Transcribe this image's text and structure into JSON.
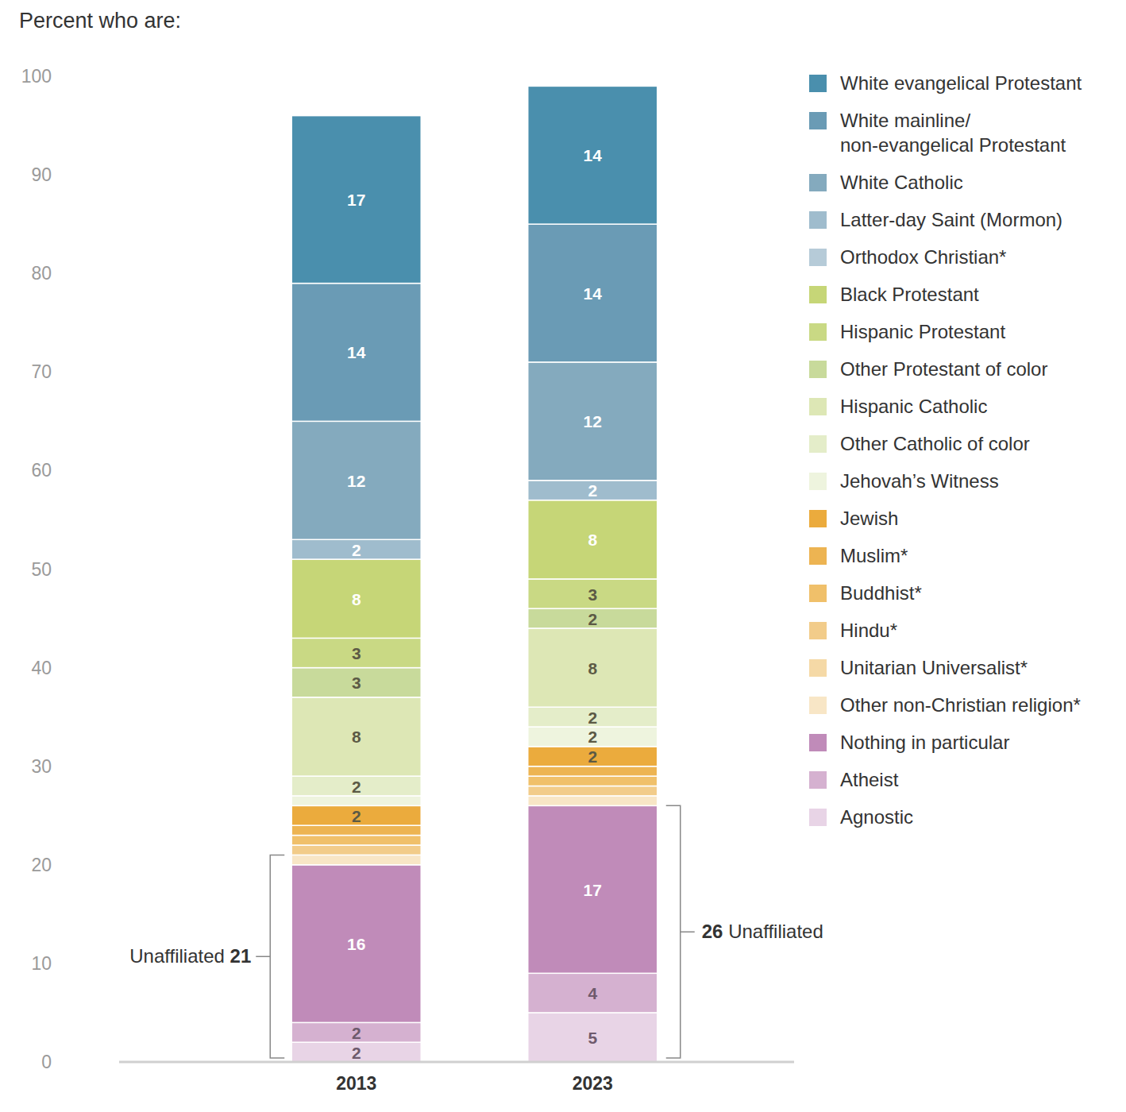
{
  "chart_data": {
    "type": "bar",
    "title": "Percent who are:",
    "stacked": true,
    "data_labels": true,
    "grid": false,
    "legend": "right",
    "categories": [
      "2013",
      "2023"
    ],
    "ylim": [
      0,
      100
    ],
    "yticks": [
      0,
      10,
      20,
      30,
      40,
      50,
      60,
      70,
      80,
      90,
      100
    ],
    "series": [
      {
        "name": "White evangelical Protestant",
        "color": "#4a8fad",
        "values": [
          17,
          14
        ],
        "value_labels": [
          "17",
          "14"
        ]
      },
      {
        "name": "White mainline/ non-evangelical Protestant",
        "color": "#6a9bb5",
        "values": [
          14,
          14
        ],
        "value_labels": [
          "14",
          "14"
        ]
      },
      {
        "name": "White Catholic",
        "color": "#84aabe",
        "values": [
          12,
          12
        ],
        "value_labels": [
          "12",
          "12"
        ]
      },
      {
        "name": "Latter-day Saint (Mormon)",
        "color": "#9fbccd",
        "values": [
          2,
          2
        ],
        "value_labels": [
          "2",
          "2"
        ]
      },
      {
        "name": "Orthodox Christian*",
        "color": "#b6cbd8",
        "values": [
          0,
          0
        ],
        "value_labels": [
          null,
          null
        ]
      },
      {
        "name": "Black Protestant",
        "color": "#c6d677",
        "values": [
          8,
          8
        ],
        "value_labels": [
          "8",
          "8"
        ]
      },
      {
        "name": "Hispanic Protestant",
        "color": "#c9d984",
        "values": [
          3,
          3
        ],
        "value_labels": [
          "3",
          "3"
        ]
      },
      {
        "name": "Other Protestant of color",
        "color": "#c8da9b",
        "values": [
          3,
          2
        ],
        "value_labels": [
          "3",
          "2"
        ]
      },
      {
        "name": "Hispanic Catholic",
        "color": "#dde7b5",
        "values": [
          8,
          8
        ],
        "value_labels": [
          "8",
          "8"
        ]
      },
      {
        "name": "Other Catholic of color",
        "color": "#e4edc9",
        "values": [
          2,
          2
        ],
        "value_labels": [
          "2",
          "2"
        ]
      },
      {
        "name": "Jehovah’s Witness",
        "color": "#eef4de",
        "values": [
          1,
          2
        ],
        "value_labels": [
          null,
          "2"
        ]
      },
      {
        "name": "Jewish",
        "color": "#ebab3d",
        "values": [
          2,
          2
        ],
        "value_labels": [
          "2",
          "2"
        ]
      },
      {
        "name": "Muslim*",
        "color": "#edb452",
        "values": [
          1,
          1
        ],
        "value_labels": [
          null,
          null
        ]
      },
      {
        "name": "Buddhist*",
        "color": "#f0c06a",
        "values": [
          1,
          1
        ],
        "value_labels": [
          null,
          null
        ]
      },
      {
        "name": "Hindu*",
        "color": "#f2cc8a",
        "values": [
          1,
          1
        ],
        "value_labels": [
          null,
          null
        ]
      },
      {
        "name": "Unitarian Universalist*",
        "color": "#f5d9a6",
        "values": [
          0,
          0
        ],
        "value_labels": [
          null,
          null
        ]
      },
      {
        "name": "Other non-Christian religion*",
        "color": "#f8e6c6",
        "values": [
          1,
          1
        ],
        "value_labels": [
          null,
          null
        ]
      },
      {
        "name": "Nothing in particular",
        "color": "#c08bb9",
        "values": [
          16,
          17
        ],
        "value_labels": [
          "16",
          "17"
        ]
      },
      {
        "name": "Atheist",
        "color": "#d5b1d0",
        "values": [
          2,
          4
        ],
        "value_labels": [
          "2",
          "4"
        ]
      },
      {
        "name": "Agnostic",
        "color": "#e8d4e6",
        "values": [
          2,
          5
        ],
        "value_labels": [
          "2",
          "5"
        ]
      }
    ],
    "annotations": [
      {
        "label": "Unaffiliated",
        "value": 21,
        "category": "2013"
      },
      {
        "label": "Unaffiliated",
        "value": 26,
        "category": "2023"
      }
    ]
  }
}
